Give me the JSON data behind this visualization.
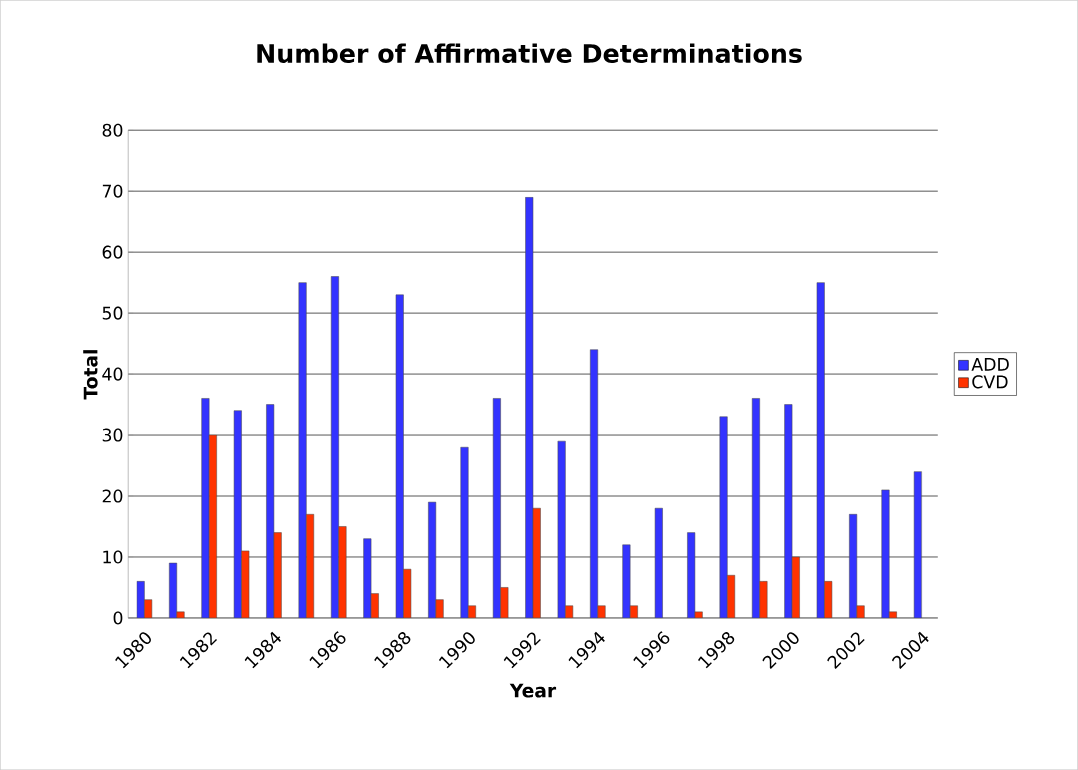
{
  "chart_data": {
    "type": "bar",
    "title": "Number of Affirmative Determinations",
    "xlabel": "Year",
    "ylabel": "Total",
    "categories": [
      "1980",
      null,
      "1982",
      null,
      "1984",
      null,
      "1986",
      null,
      "1988",
      null,
      "1990",
      null,
      "1992",
      null,
      "1994",
      null,
      "1996",
      null,
      "1998",
      null,
      "2000",
      null,
      "2002",
      null,
      "2004"
    ],
    "series": [
      {
        "name": "ADD",
        "color": "#3333ff",
        "values": [
          6,
          9,
          36,
          34,
          35,
          55,
          56,
          13,
          53,
          19,
          28,
          36,
          69,
          29,
          44,
          12,
          18,
          14,
          33,
          36,
          35,
          55,
          17,
          21,
          24
        ]
      },
      {
        "name": "CVD",
        "color": "#ff3300",
        "values": [
          3,
          1,
          30,
          11,
          14,
          17,
          15,
          4,
          8,
          3,
          2,
          5,
          18,
          2,
          2,
          2,
          null,
          1,
          7,
          6,
          10,
          6,
          2,
          1,
          null
        ]
      }
    ],
    "ylim": [
      0,
      80
    ],
    "yticks": [
      0,
      10,
      20,
      30,
      40,
      50,
      60,
      70,
      80
    ],
    "grid": "y",
    "legend": "right"
  }
}
